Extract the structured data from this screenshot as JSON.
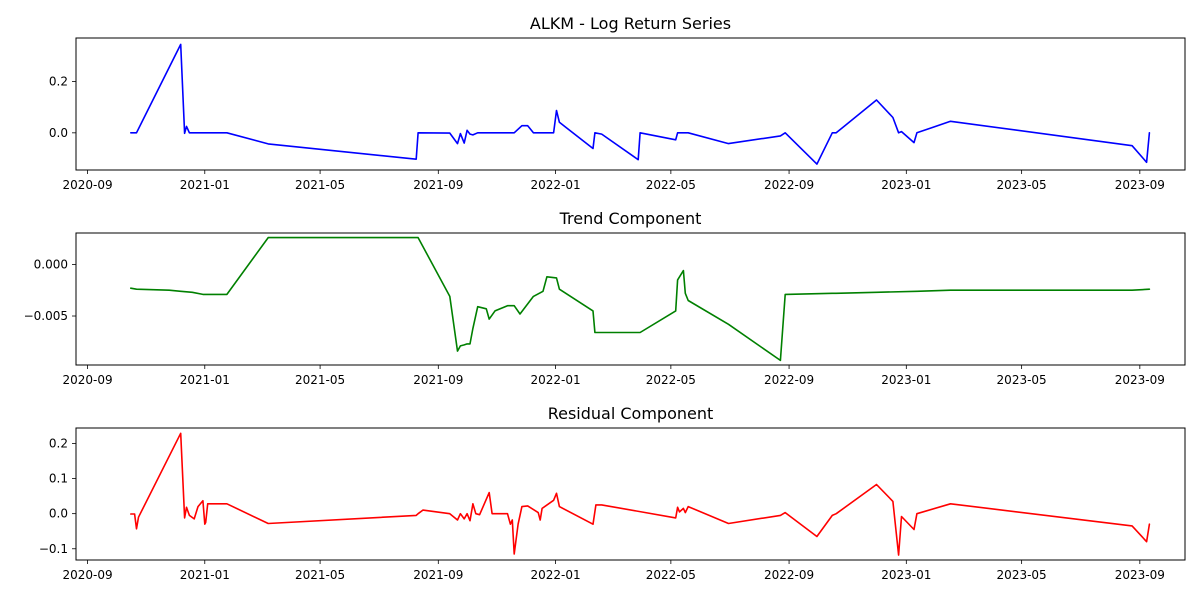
{
  "chart_data": [
    {
      "type": "line",
      "title": "ALKM - Log Return Series",
      "xlabel": "",
      "ylabel": "",
      "color": "#0000ff",
      "xlim": [
        "2020-08-20",
        "2023-10-18"
      ],
      "ylim": [
        -0.145,
        0.37
      ],
      "xticks": [
        "2020-09",
        "2021-01",
        "2021-05",
        "2021-09",
        "2022-01",
        "2022-05",
        "2022-09",
        "2023-01",
        "2023-05",
        "2023-09"
      ],
      "yticks": [
        0.2,
        0.0
      ],
      "ytick_labels": [
        "0.2",
        "0.0"
      ],
      "grid": false,
      "x": [
        "2020-10-16",
        "2020-10-22",
        "2020-12-07",
        "2020-12-11",
        "2020-12-13",
        "2020-12-16",
        "2021-01-24",
        "2021-03-08",
        "2021-08-09",
        "2021-08-11",
        "2021-09-13",
        "2021-09-21",
        "2021-09-24",
        "2021-09-28",
        "2021-10-01",
        "2021-10-04",
        "2021-10-07",
        "2021-10-12",
        "2021-10-21",
        "2021-11-19",
        "2021-11-27",
        "2021-12-03",
        "2021-12-09",
        "2021-12-30",
        "2022-01-02",
        "2022-01-05",
        "2022-02-09",
        "2022-02-11",
        "2022-02-18",
        "2022-03-28",
        "2022-03-30",
        "2022-05-06",
        "2022-05-08",
        "2022-05-19",
        "2022-06-30",
        "2022-08-23",
        "2022-08-28",
        "2022-09-30",
        "2022-10-16",
        "2022-10-20",
        "2022-12-01",
        "2022-12-18",
        "2022-12-24",
        "2022-12-27",
        "2023-01-09",
        "2023-01-12",
        "2023-02-16",
        "2023-08-24",
        "2023-09-08",
        "2023-09-11"
      ],
      "y": [
        0.0,
        0.0,
        0.345,
        -0.002,
        0.025,
        0.0,
        0.0,
        -0.043,
        -0.103,
        0.0,
        -0.001,
        -0.042,
        -0.003,
        -0.04,
        0.01,
        -0.005,
        -0.008,
        0.0,
        0.0,
        0.0,
        0.028,
        0.028,
        0.0,
        0.0,
        0.087,
        0.041,
        -0.061,
        0.0,
        -0.005,
        -0.105,
        0.0,
        -0.027,
        0.0,
        0.0,
        -0.042,
        -0.012,
        0.0,
        -0.122,
        0.0,
        0.0,
        0.128,
        0.06,
        0.0,
        0.005,
        -0.038,
        0.0,
        0.045,
        -0.05,
        -0.115,
        0.0
      ]
    },
    {
      "type": "line",
      "title": "Trend Component",
      "xlabel": "",
      "ylabel": "",
      "color": "#008000",
      "xlim": [
        "2020-08-20",
        "2023-10-18"
      ],
      "ylim": [
        -0.00975,
        0.00305
      ],
      "xticks": [
        "2020-09",
        "2021-01",
        "2021-05",
        "2021-09",
        "2022-01",
        "2022-05",
        "2022-09",
        "2023-01",
        "2023-05",
        "2023-09"
      ],
      "yticks": [
        0.0,
        -0.005
      ],
      "ytick_labels": [
        "0.000",
        "−0.005"
      ],
      "grid": false,
      "x": [
        "2020-10-16",
        "2020-10-22",
        "2020-11-25",
        "2020-12-07",
        "2020-12-19",
        "2020-12-30",
        "2021-01-24",
        "2021-03-08",
        "2021-08-09",
        "2021-08-11",
        "2021-09-13",
        "2021-09-21",
        "2021-09-24",
        "2021-09-28",
        "2021-10-01",
        "2021-10-04",
        "2021-10-07",
        "2021-10-12",
        "2021-10-21",
        "2021-10-24",
        "2021-10-30",
        "2021-11-12",
        "2021-11-19",
        "2021-11-25",
        "2021-12-09",
        "2021-12-19",
        "2021-12-23",
        "2022-01-02",
        "2022-01-05",
        "2022-02-09",
        "2022-02-11",
        "2022-02-18",
        "2022-03-28",
        "2022-03-30",
        "2022-05-06",
        "2022-05-08",
        "2022-05-14",
        "2022-05-16",
        "2022-05-19",
        "2022-06-30",
        "2022-08-23",
        "2022-08-28",
        "2022-10-16",
        "2022-10-20",
        "2022-12-01",
        "2023-01-12",
        "2023-02-16",
        "2023-08-24",
        "2023-09-11"
      ],
      "y": [
        -0.0023,
        -0.0024,
        -0.0025,
        -0.0026,
        -0.0027,
        -0.0029,
        -0.0029,
        0.0026,
        0.0026,
        0.0026,
        -0.0031,
        -0.0084,
        -0.0079,
        -0.0078,
        -0.0077,
        -0.0077,
        -0.0062,
        -0.0041,
        -0.0043,
        -0.0053,
        -0.0045,
        -0.004,
        -0.004,
        -0.0048,
        -0.0031,
        -0.0026,
        -0.0012,
        -0.0013,
        -0.0024,
        -0.0045,
        -0.0066,
        -0.0066,
        -0.0066,
        -0.0066,
        -0.0045,
        -0.0015,
        -0.0006,
        -0.0028,
        -0.0035,
        -0.0058,
        -0.0093,
        -0.0029,
        -0.0028,
        -0.0028,
        -0.0027,
        -0.0026,
        -0.0025,
        -0.0025,
        -0.0024
      ]
    },
    {
      "type": "line",
      "title": "Residual Component",
      "xlabel": "",
      "ylabel": "",
      "color": "#ff0000",
      "xlim": [
        "2020-08-20",
        "2023-10-18"
      ],
      "ylim": [
        -0.132,
        0.244
      ],
      "xticks": [
        "2020-09",
        "2021-01",
        "2021-05",
        "2021-09",
        "2022-01",
        "2022-05",
        "2022-09",
        "2023-01",
        "2023-05",
        "2023-09"
      ],
      "yticks": [
        0.2,
        0.1,
        0.0,
        -0.1
      ],
      "ytick_labels": [
        "0.2",
        "0.1",
        "0.0",
        "−0.1"
      ],
      "grid": false,
      "x": [
        "2020-10-16",
        "2020-10-20",
        "2020-10-22",
        "2020-10-24",
        "2020-12-07",
        "2020-12-11",
        "2020-12-13",
        "2020-12-16",
        "2020-12-21",
        "2020-12-25",
        "2020-12-30",
        "2021-01-01",
        "2021-01-02",
        "2021-01-04",
        "2021-01-24",
        "2021-03-08",
        "2021-08-09",
        "2021-08-11",
        "2021-08-16",
        "2021-09-13",
        "2021-09-21",
        "2021-09-24",
        "2021-09-28",
        "2021-10-01",
        "2021-10-04",
        "2021-10-07",
        "2021-10-10",
        "2021-10-14",
        "2021-10-24",
        "2021-10-27",
        "2021-10-30",
        "2021-11-12",
        "2021-11-15",
        "2021-11-17",
        "2021-11-19",
        "2021-11-23",
        "2021-11-27",
        "2021-12-03",
        "2021-12-14",
        "2021-12-16",
        "2021-12-18",
        "2021-12-30",
        "2022-01-02",
        "2022-01-05",
        "2022-02-09",
        "2022-02-12",
        "2022-02-18",
        "2022-05-06",
        "2022-05-08",
        "2022-05-10",
        "2022-05-14",
        "2022-05-16",
        "2022-05-19",
        "2022-06-30",
        "2022-08-23",
        "2022-08-28",
        "2022-09-30",
        "2022-10-16",
        "2022-10-20",
        "2022-12-01",
        "2022-12-18",
        "2022-12-24",
        "2022-12-27",
        "2023-01-09",
        "2023-01-12",
        "2023-02-16",
        "2023-08-24",
        "2023-09-08",
        "2023-09-11"
      ],
      "y": [
        -0.001,
        -0.001,
        -0.043,
        -0.01,
        0.229,
        -0.012,
        0.018,
        -0.005,
        -0.015,
        0.02,
        0.037,
        -0.03,
        -0.025,
        0.028,
        0.028,
        -0.028,
        -0.005,
        0.0,
        0.01,
        0.0,
        -0.018,
        0.0,
        -0.015,
        0.0,
        -0.02,
        0.028,
        0.0,
        -0.003,
        0.06,
        0.0,
        0.0,
        0.0,
        -0.03,
        -0.018,
        -0.115,
        -0.03,
        0.02,
        0.022,
        0.003,
        -0.018,
        0.015,
        0.038,
        0.058,
        0.02,
        -0.03,
        0.025,
        0.025,
        -0.012,
        0.018,
        0.005,
        0.015,
        0.003,
        0.02,
        -0.028,
        -0.005,
        0.003,
        -0.065,
        -0.005,
        0.0,
        0.083,
        0.035,
        -0.118,
        -0.008,
        -0.045,
        0.0,
        0.028,
        -0.035,
        -0.08,
        -0.03
      ]
    }
  ]
}
